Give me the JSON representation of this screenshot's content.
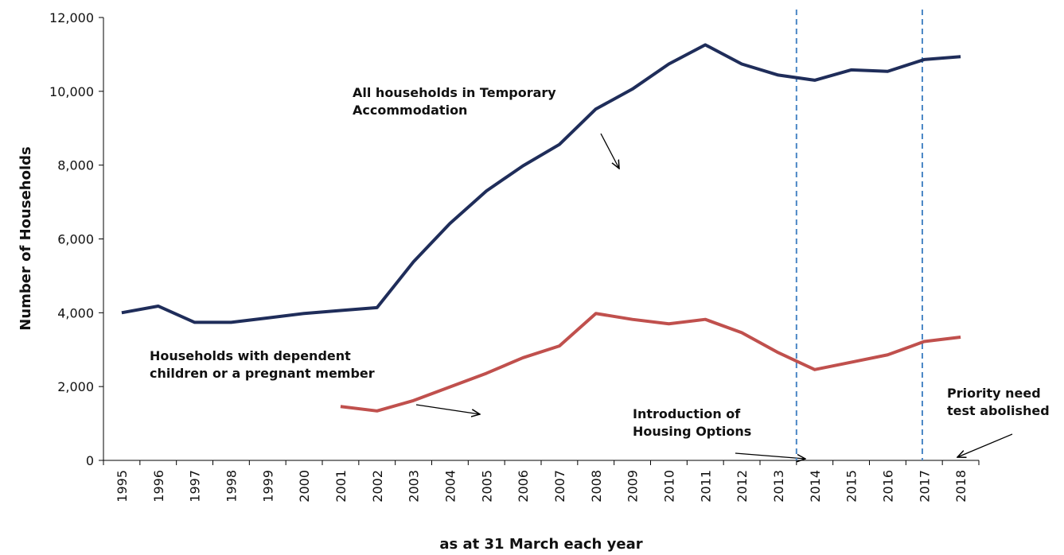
{
  "chart_data": {
    "type": "line",
    "y_label": "Number of Households",
    "x_label": "as at 31 March each year",
    "categories": [
      "1995",
      "1996",
      "1997",
      "1998",
      "1999",
      "2000",
      "2001",
      "2002",
      "2003",
      "2004",
      "2005",
      "2006",
      "2007",
      "2008",
      "2009",
      "2010",
      "2011",
      "2012",
      "2013",
      "2014",
      "2015",
      "2016",
      "2017",
      "2018"
    ],
    "series": [
      {
        "name": "All households in Temporary Accommodation",
        "color": "#1f2d5a",
        "values": [
          4000,
          4180,
          3740,
          3740,
          3860,
          3980,
          4060,
          4140,
          5380,
          6420,
          7300,
          7980,
          8560,
          9520,
          10060,
          10740,
          11260,
          10740,
          10440,
          10300,
          10580,
          10540,
          10860,
          10940
        ]
      },
      {
        "name": "Households with dependent children or a pregnant member",
        "color": "#c0504d",
        "values": [
          null,
          null,
          null,
          null,
          null,
          null,
          1460,
          1340,
          1620,
          1990,
          2360,
          2780,
          3100,
          3980,
          3820,
          3700,
          3820,
          3460,
          2920,
          2460,
          2660,
          2860,
          3220,
          3340
        ]
      }
    ],
    "annotations": [
      {
        "lines": [
          "All households in Temporary",
          "Accommodation"
        ]
      },
      {
        "lines": [
          "Households with dependent",
          "children or a pregnant member"
        ]
      },
      {
        "lines": [
          "Introduction of",
          "Housing Options"
        ]
      },
      {
        "lines": [
          "Priority need",
          "test abolished"
        ]
      }
    ],
    "ylim": [
      0,
      12000
    ],
    "yticks": [
      0,
      {
        "value": 2000,
        "label": "2,000"
      },
      {
        "value": 4000,
        "label": "4,000"
      },
      {
        "value": 6000,
        "label": "6,000"
      },
      {
        "value": 8000,
        "label": "8,000"
      },
      {
        "value": 10000,
        "label": "10,000"
      },
      {
        "value": 12000,
        "label": "12,000"
      }
    ],
    "grid": false
  }
}
